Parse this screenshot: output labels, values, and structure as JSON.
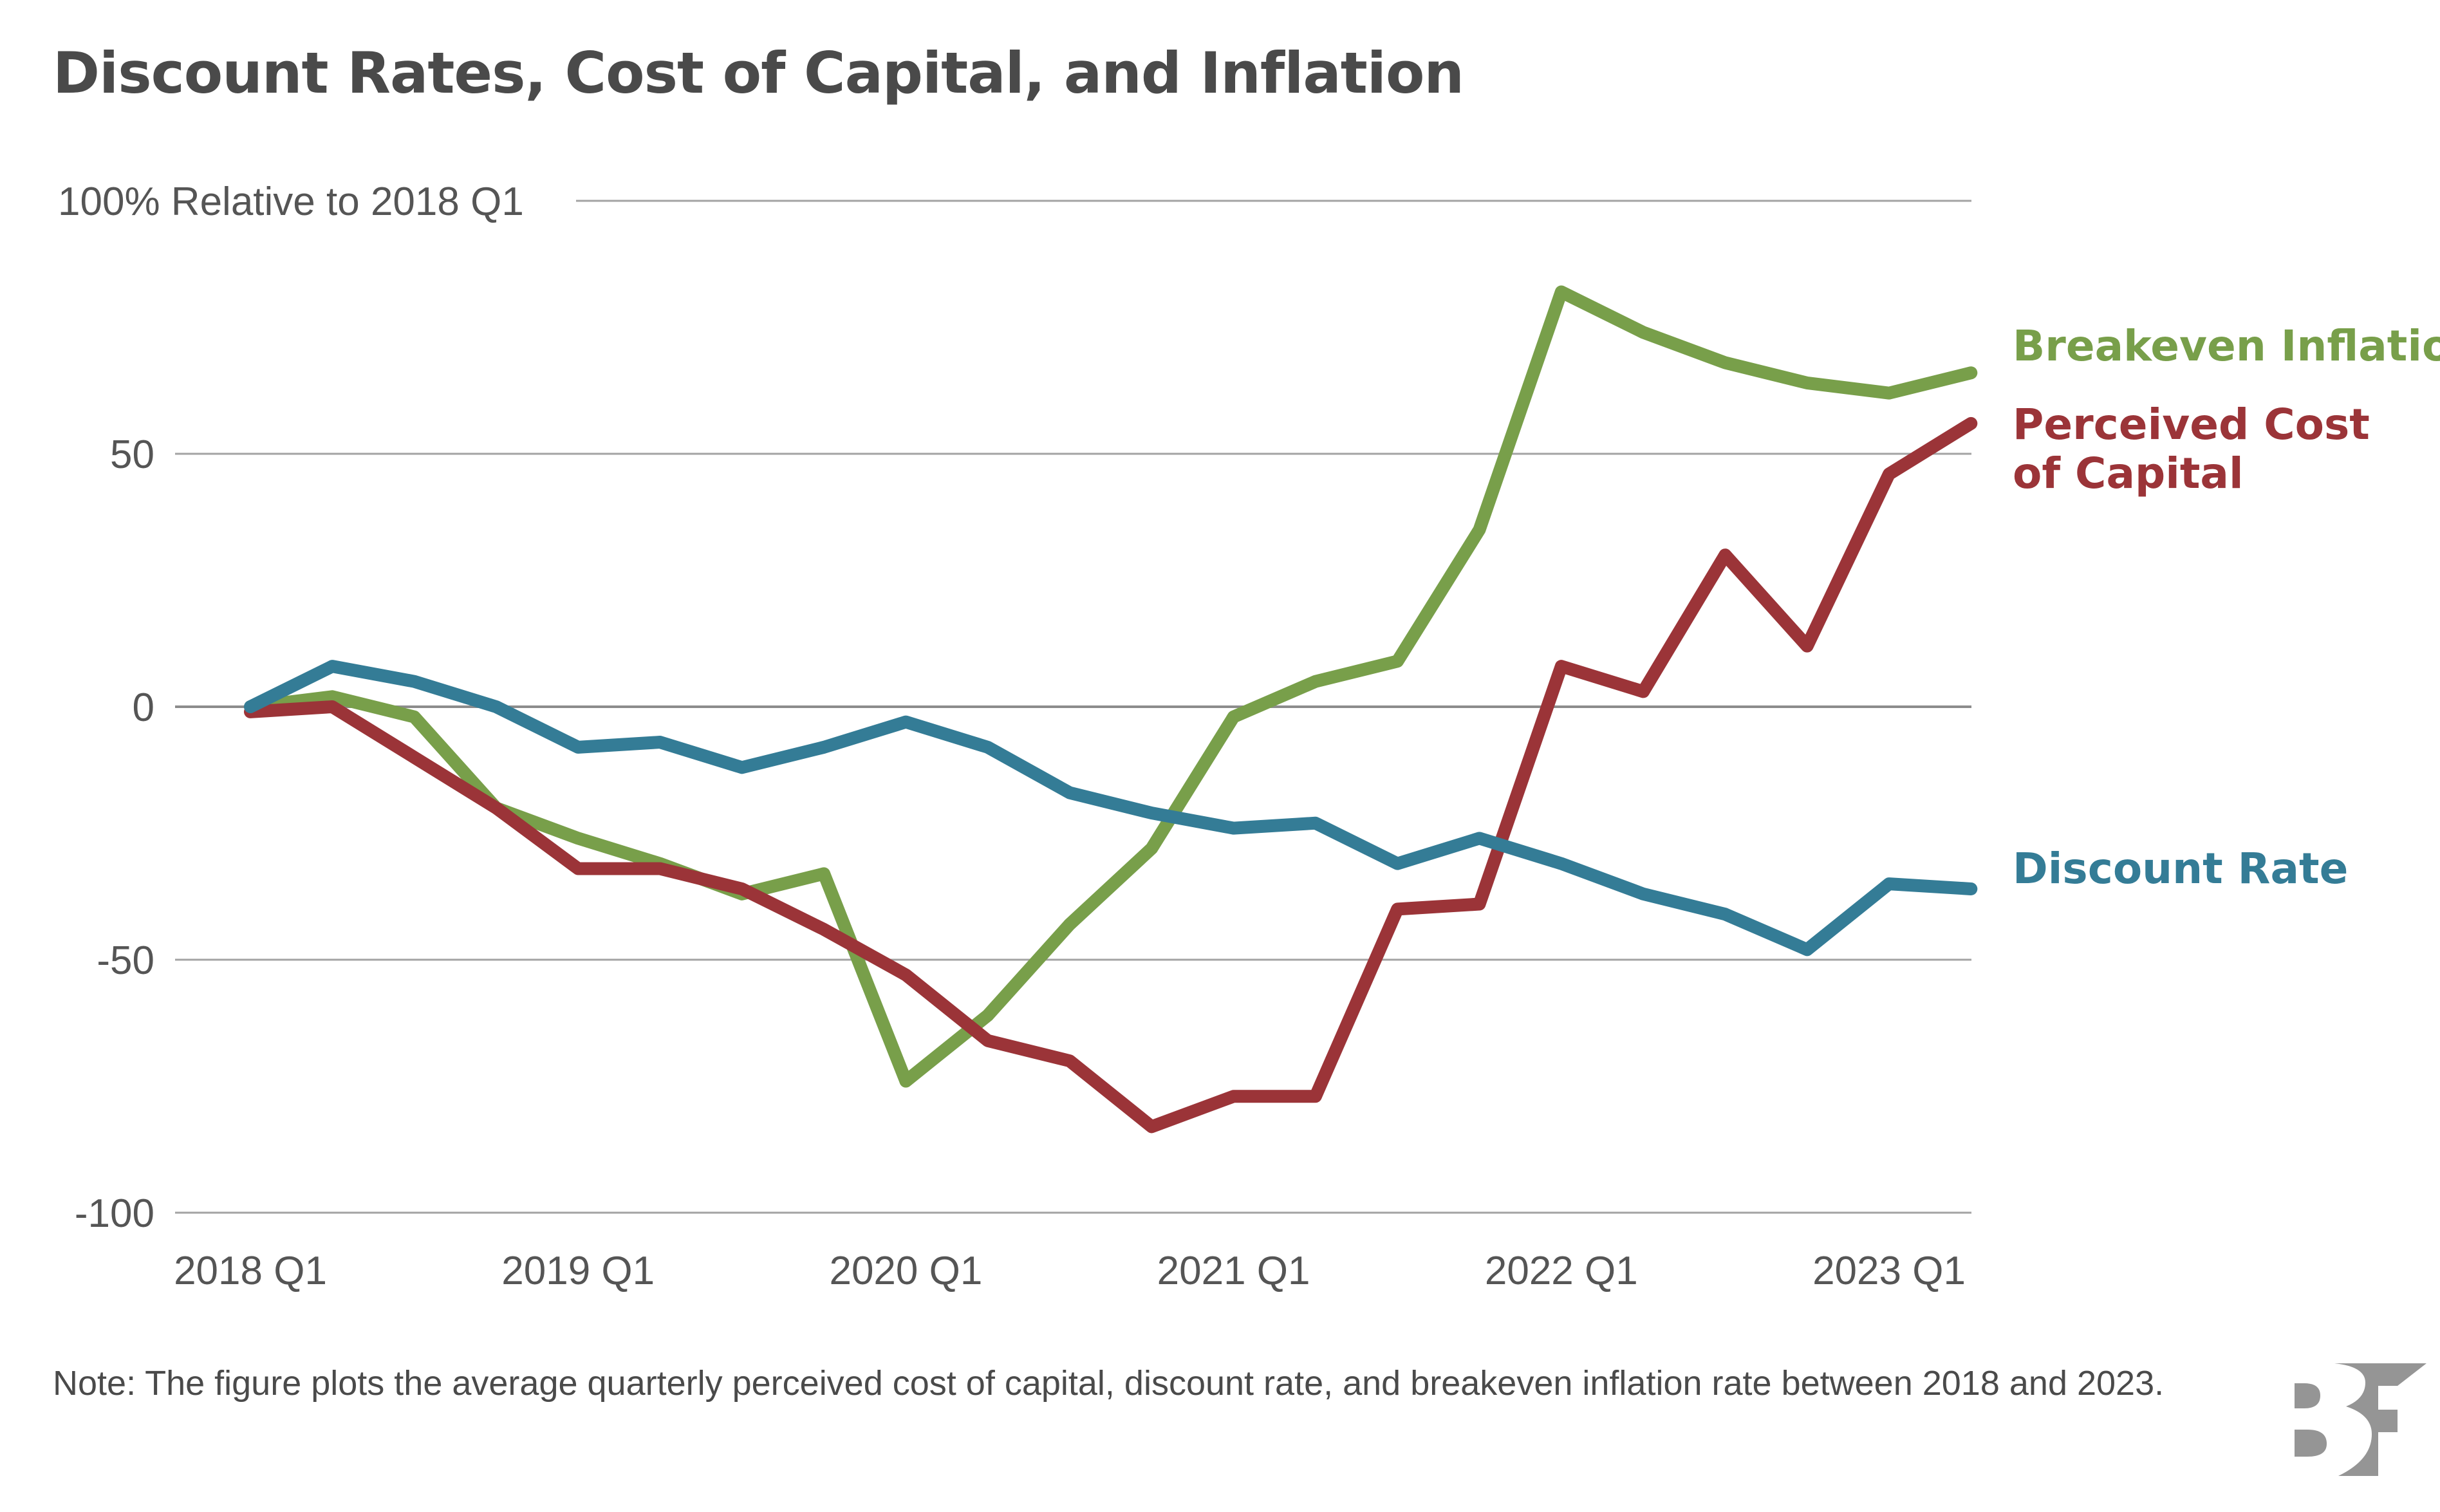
{
  "title": "Discount Rates, Cost of Capital, and Inflation",
  "note": "Note: The figure plots the average quarterly perceived cost of capital, discount rate, and breakeven inflation rate between 2018 and 2023.",
  "logo": {
    "icon": "bf-logo-icon",
    "color": "#959595"
  },
  "chart_data": {
    "type": "line",
    "title": "Discount Rates, Cost of Capital, and Inflation",
    "ylabel": "% Relative to 2018 Q1",
    "xlabel": "",
    "ylim": [
      -100,
      100
    ],
    "yticks": [
      -100,
      -50,
      0,
      50,
      100
    ],
    "ytick_labels": [
      "-100",
      "-50",
      "0",
      "50",
      "100% Relative to 2018 Q1"
    ],
    "x": [
      "2018 Q1",
      "2018 Q2",
      "2018 Q3",
      "2018 Q4",
      "2019 Q1",
      "2019 Q2",
      "2019 Q3",
      "2019 Q4",
      "2020 Q1",
      "2020 Q2",
      "2020 Q3",
      "2020 Q4",
      "2021 Q1",
      "2021 Q2",
      "2021 Q3",
      "2021 Q4",
      "2022 Q1",
      "2022 Q2",
      "2022 Q3",
      "2022 Q4",
      "2023 Q1",
      "2023 Q2"
    ],
    "xtick_labels": [
      "2018 Q1",
      "2019 Q1",
      "2020 Q1",
      "2021 Q1",
      "2022 Q1",
      "2023 Q1"
    ],
    "xtick_index": [
      0,
      4,
      8,
      12,
      16,
      20
    ],
    "grid": true,
    "legend": "direct-labels-right",
    "series": [
      {
        "name": "Breakeven Inflation",
        "label_lines": [
          "Breakeven Inflation"
        ],
        "color": "#789f4a",
        "values": [
          0,
          2,
          -2,
          -20,
          -26,
          -31,
          -37,
          -33,
          -74,
          -61,
          -43,
          -28,
          -2,
          5,
          9,
          35,
          82,
          74,
          68,
          64,
          62,
          66
        ]
      },
      {
        "name": "Perceived Cost of Capital",
        "label_lines": [
          "Perceived Cost",
          "of Capital"
        ],
        "color": "#9b3438",
        "values": [
          -1,
          0,
          -10,
          -20,
          -32,
          -32,
          -36,
          -44,
          -53,
          -66,
          -70,
          -83,
          -77,
          -77,
          -40,
          -39,
          8,
          3,
          30,
          12,
          46,
          56
        ]
      },
      {
        "name": "Discount Rate",
        "label_lines": [
          "Discount Rate"
        ],
        "color": "#347c96",
        "values": [
          0,
          8,
          5,
          0,
          -8,
          -7,
          -12,
          -8,
          -3,
          -8,
          -17,
          -21,
          -24,
          -23,
          -31,
          -26,
          -31,
          -37,
          -41,
          -48,
          -35,
          -36
        ]
      }
    ]
  }
}
